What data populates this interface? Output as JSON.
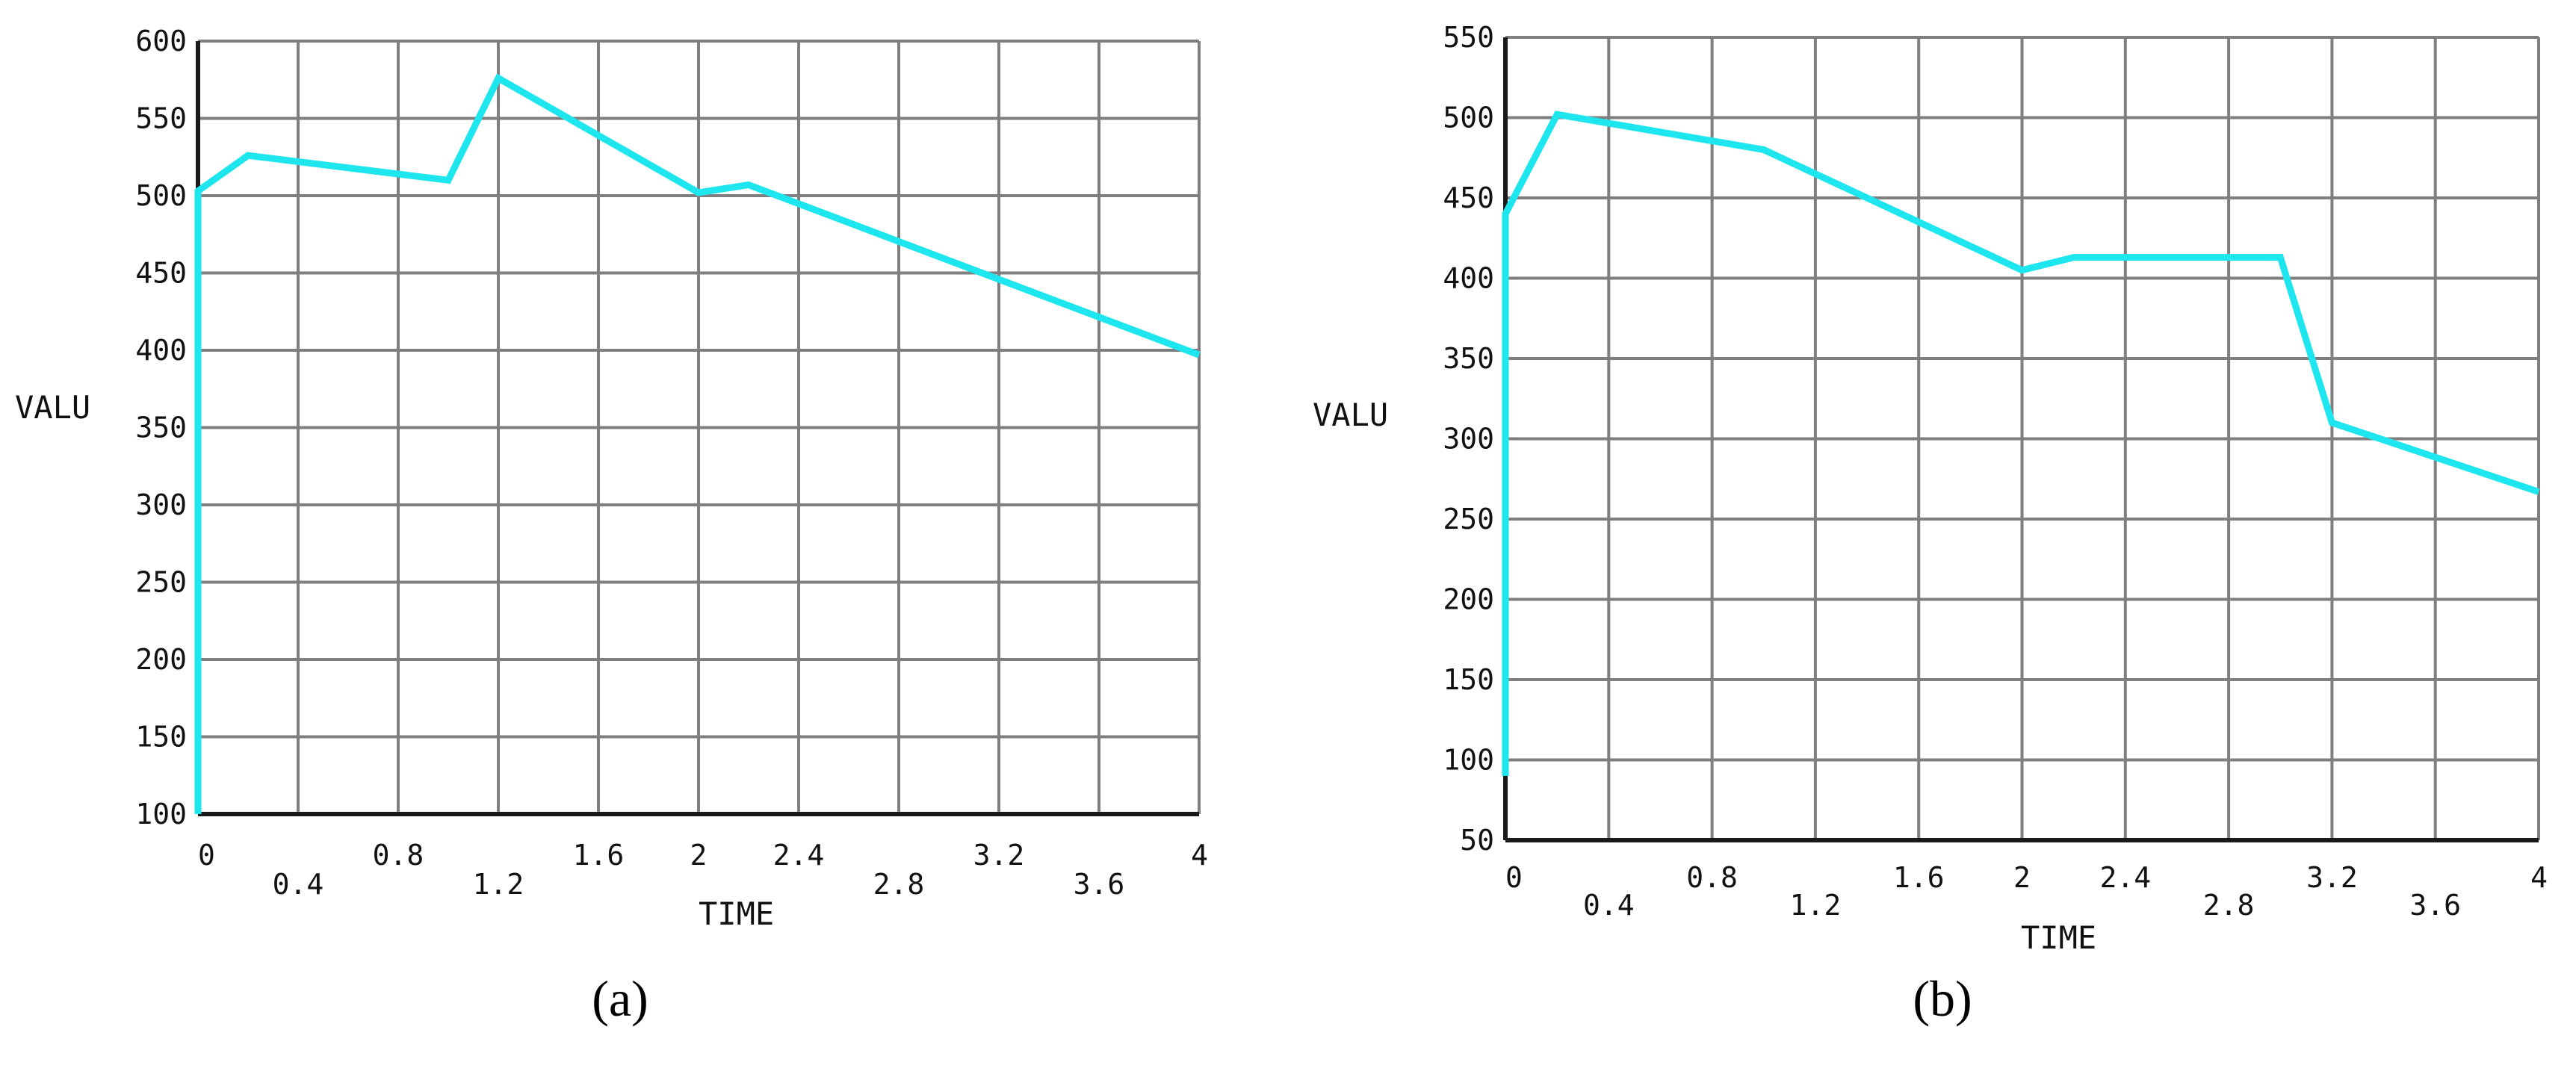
{
  "chart_data": [
    {
      "type": "line",
      "panel_label": "(a)",
      "xlabel": "TIME",
      "ylabel": "VALU",
      "xlim": [
        0,
        4
      ],
      "ylim": [
        100,
        600
      ],
      "grid": true,
      "x_ticks": [
        "0",
        "0.4",
        "0.8",
        "1.2",
        "1.6",
        "2",
        "2.4",
        "2.8",
        "3.2",
        "3.6",
        "4"
      ],
      "y_ticks": [
        "100",
        "150",
        "200",
        "250",
        "300",
        "350",
        "400",
        "450",
        "500",
        "550",
        "600"
      ],
      "series": [
        {
          "color": "#1ee6ef",
          "x": [
            0,
            0,
            0.2,
            1.0,
            1.2,
            2.0,
            2.2,
            4.0
          ],
          "y": [
            100,
            503,
            526,
            510,
            576,
            502,
            507,
            397
          ]
        }
      ]
    },
    {
      "type": "line",
      "panel_label": "(b)",
      "xlabel": "TIME",
      "ylabel": "VALU",
      "xlim": [
        0,
        4
      ],
      "ylim": [
        50,
        550
      ],
      "grid": true,
      "x_ticks": [
        "0",
        "0.4",
        "0.8",
        "1.2",
        "1.6",
        "2",
        "2.4",
        "2.8",
        "3.2",
        "3.6",
        "4"
      ],
      "y_ticks": [
        "50",
        "100",
        "150",
        "200",
        "250",
        "300",
        "350",
        "400",
        "450",
        "500",
        "550"
      ],
      "series": [
        {
          "color": "#1ee6ef",
          "x": [
            0,
            0,
            0.2,
            1.0,
            2.0,
            2.2,
            3.0,
            3.2,
            4.0
          ],
          "y": [
            90,
            440,
            502,
            480,
            405,
            413,
            413,
            310,
            267
          ]
        }
      ]
    }
  ]
}
